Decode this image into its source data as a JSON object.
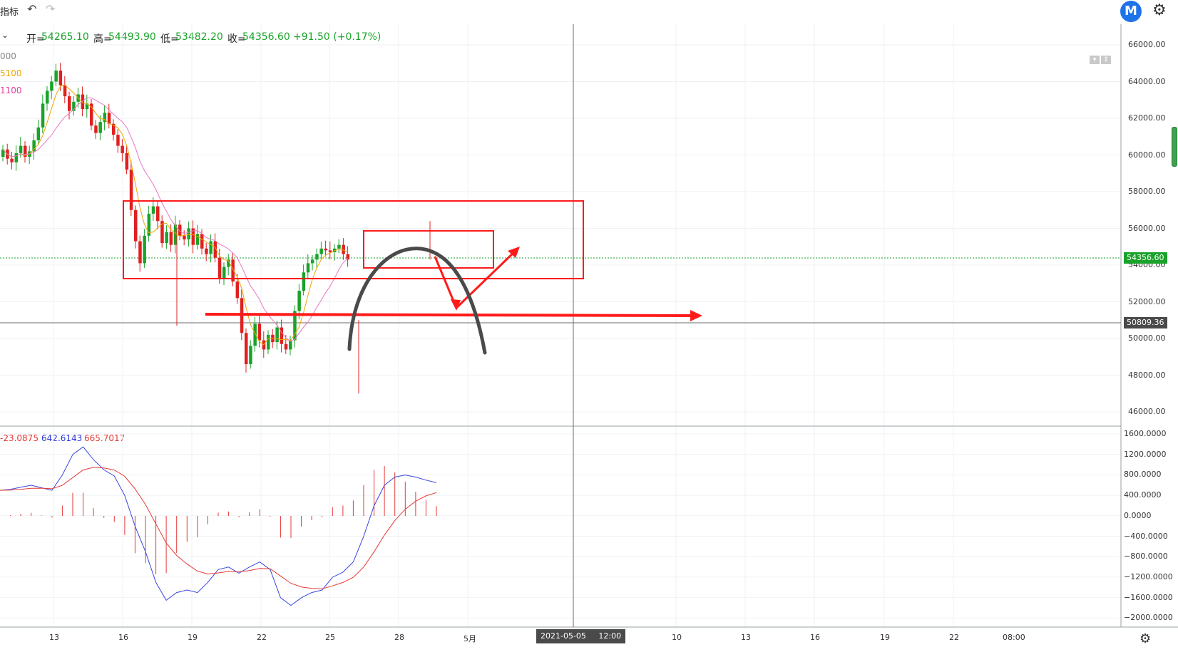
{
  "toolbar": {
    "indicators_label": "指标",
    "undo_icon": "undo-icon",
    "redo_icon": "redo-icon",
    "logo_letter": "M",
    "settings_icon": "gear-icon"
  },
  "ohlc": {
    "open_label": "开=",
    "open": "54265.10",
    "high_label": "高=",
    "high": "54493.90",
    "low_label": "低=",
    "low": "53482.20",
    "close_label": "收=",
    "close": "54356.60",
    "change": "+91.50 (+0.17%)"
  },
  "ma_legend": [
    {
      "text": "000",
      "color": "#888888"
    },
    {
      "text": "5100",
      "color": "#f0a500"
    },
    {
      "text": "1100",
      "color": "#e040a0"
    }
  ],
  "macd_legend": {
    "hist": "-23.0875",
    "hist_color": "#e53935",
    "dif": "642.6143",
    "dif_color": "#2a35d9",
    "dea": "665.7017",
    "dea_color": "#e53935"
  },
  "price_axis": [
    "66000.00",
    "64000.00",
    "62000.00",
    "60000.00",
    "58000.00",
    "56000.00",
    "54000.00",
    "52000.00",
    "50000.00",
    "48000.00",
    "46000.00"
  ],
  "macd_axis": [
    "1600.0000",
    "1200.0000",
    "800.0000",
    "400.0000",
    "0.0000",
    "−400.0000",
    "−800.0000",
    "−1200.0000",
    "−1600.0000",
    "−2000.0000"
  ],
  "last_price": {
    "value": "54356.60",
    "color": "#1aa32a"
  },
  "crosshair_price": {
    "value": "50809.36",
    "color": "#4a4a4a"
  },
  "x_axis": [
    "13",
    "16",
    "19",
    "22",
    "25",
    "28",
    "5月",
    "10",
    "13",
    "16",
    "19",
    "22",
    "08:00"
  ],
  "crosshair_time": {
    "date": "2021-05-05",
    "time": "12:00"
  },
  "colors": {
    "up": "#1aa32a",
    "down": "#e02020",
    "annotation": "#ff1a1a",
    "drawing": "#4a4a4a"
  }
}
